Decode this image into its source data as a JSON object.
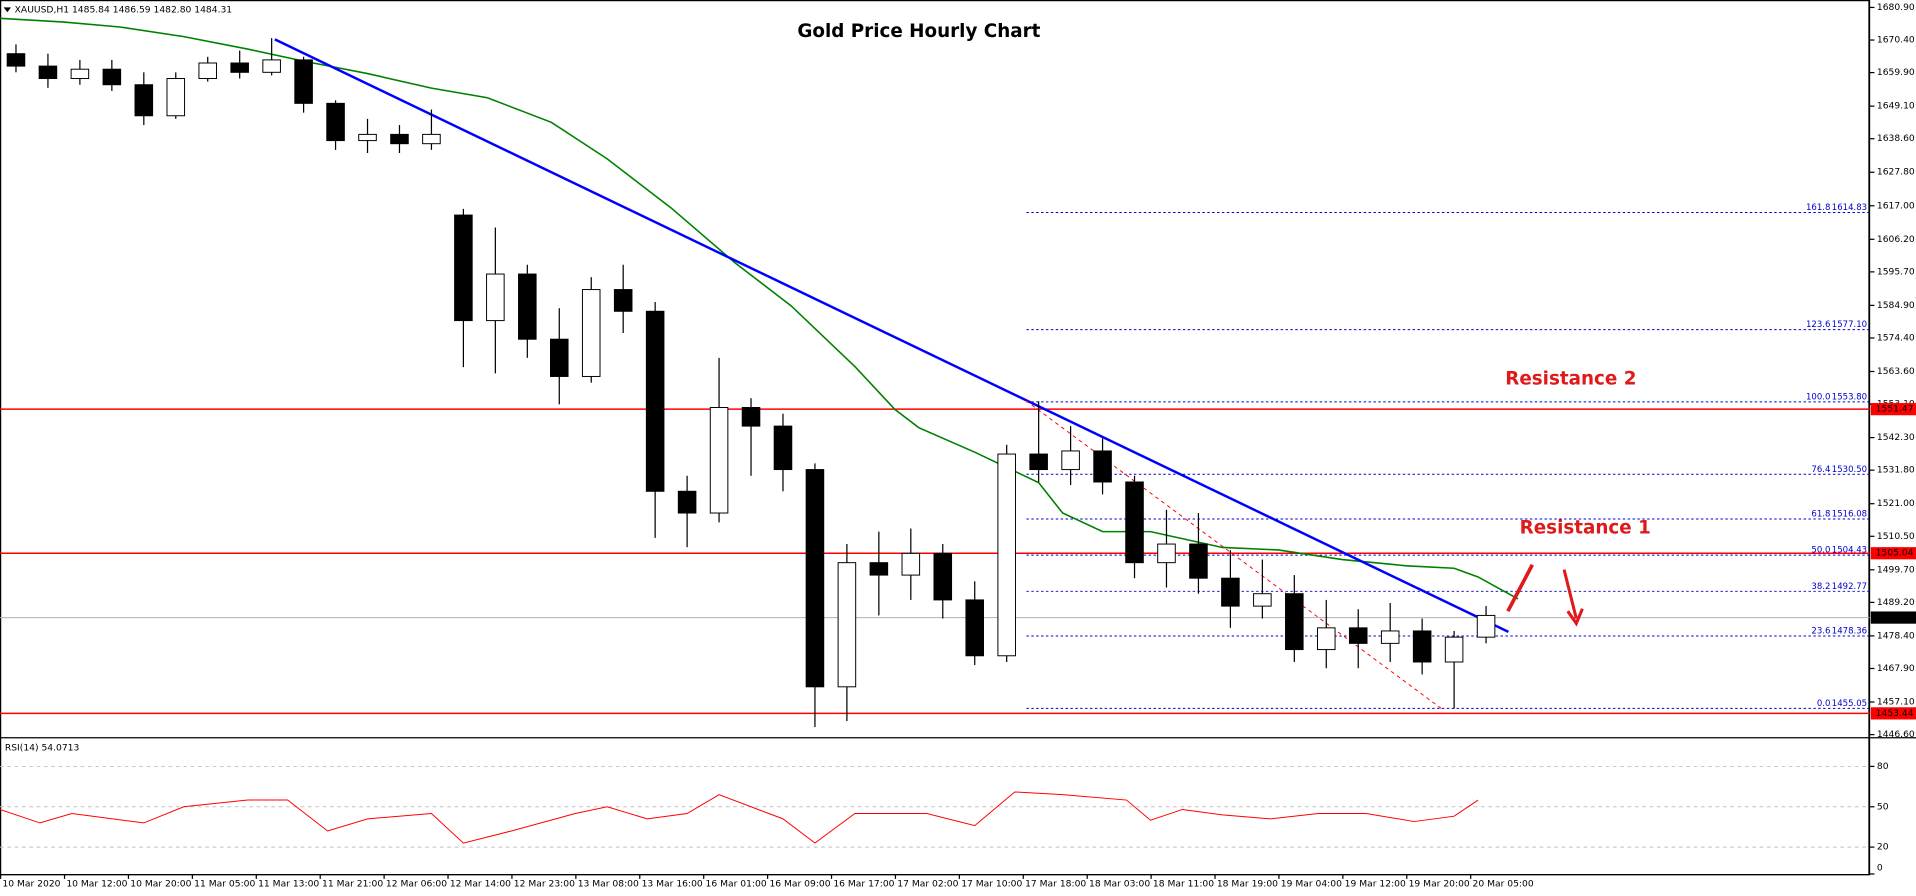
{
  "chart_data": [
    {
      "type": "candlestick",
      "title": "Gold Price Hourly Chart",
      "header": "XAUUSD,H1  1485.84 1486.59 1482.80 1484.31",
      "xlim": [
        0,
        234
      ],
      "ylim": [
        1445.8,
        1683.3
      ],
      "yticks": [
        {
          "value": 1680.9,
          "label": "1680.90"
        },
        {
          "value": 1670.4,
          "label": "1670.40"
        },
        {
          "value": 1659.9,
          "label": "1659.90"
        },
        {
          "value": 1649.1,
          "label": "1649.10"
        },
        {
          "value": 1638.6,
          "label": "1638.60"
        },
        {
          "value": 1627.8,
          "label": "1627.80"
        },
        {
          "value": 1617,
          "label": "1617.00"
        },
        {
          "value": 1606.2,
          "label": "1606.20"
        },
        {
          "value": 1595.7,
          "label": "1595.70"
        },
        {
          "value": 1584.9,
          "label": "1584.90"
        },
        {
          "value": 1574.4,
          "label": "1574.40"
        },
        {
          "value": 1563.6,
          "label": "1563.60"
        },
        {
          "value": 1553.1,
          "label": "1553.10"
        },
        {
          "value": 1542.3,
          "label": "1542.30"
        },
        {
          "value": 1531.8,
          "label": "1531.80"
        },
        {
          "value": 1521,
          "label": "1521.00"
        },
        {
          "value": 1510.5,
          "label": "1510.50"
        },
        {
          "value": 1499.7,
          "label": "1499.70"
        },
        {
          "value": 1489.2,
          "label": "1489.20"
        },
        {
          "value": 1478.4,
          "label": "1478.40"
        },
        {
          "value": 1467.9,
          "label": "1467.90"
        },
        {
          "value": 1457.1,
          "label": "1457.10"
        },
        {
          "value": 1446.6,
          "label": "1446.60"
        }
      ],
      "x": [
        2,
        6,
        10,
        14,
        18,
        22,
        26,
        30,
        34,
        38,
        42,
        46,
        50,
        54,
        58,
        62,
        66,
        70,
        74,
        78,
        82,
        86,
        90,
        94,
        98,
        102,
        106,
        110,
        114,
        118,
        122,
        126,
        130,
        134,
        138,
        142,
        146,
        150,
        154,
        158,
        162,
        166,
        170,
        174,
        178,
        182,
        186
      ],
      "open": [
        1666,
        1662,
        1658,
        1661,
        1656,
        1646,
        1658,
        1663,
        1660,
        1664,
        1650,
        1638,
        1640,
        1637,
        1614,
        1580,
        1595,
        1574,
        1562,
        1590,
        1583,
        1525,
        1518,
        1552,
        1546,
        1532,
        1462,
        1502,
        1498,
        1505,
        1490,
        1472,
        1537,
        1532,
        1538,
        1528,
        1502,
        1508,
        1497,
        1488,
        1492,
        1474,
        1481,
        1476,
        1480,
        1470,
        1478
      ],
      "high": [
        1669,
        1666,
        1664,
        1664,
        1660,
        1660,
        1665,
        1667,
        1671,
        1665,
        1651,
        1645,
        1643,
        1648,
        1616,
        1610,
        1598,
        1584,
        1594,
        1598,
        1586,
        1530,
        1568,
        1555,
        1550,
        1534,
        1508,
        1512,
        1513,
        1508,
        1496,
        1540,
        1554,
        1546,
        1542,
        1530,
        1519,
        1518,
        1506,
        1503,
        1498,
        1490,
        1487,
        1489,
        1484,
        1480,
        1488
      ],
      "low": [
        1660,
        1655,
        1656,
        1654,
        1643,
        1645,
        1657,
        1658,
        1659,
        1647,
        1635,
        1634,
        1634,
        1635,
        1565,
        1563,
        1568,
        1553,
        1560,
        1576,
        1510,
        1507,
        1515,
        1530,
        1525,
        1449,
        1451,
        1485,
        1490,
        1484,
        1469,
        1470,
        1528,
        1527,
        1524,
        1497,
        1494,
        1492,
        1481,
        1484,
        1470,
        1468,
        1468,
        1470,
        1466,
        1455,
        1476
      ],
      "close": [
        1662,
        1658,
        1661,
        1656,
        1646,
        1658,
        1663,
        1660,
        1664,
        1650,
        1638,
        1640,
        1637,
        1640,
        1580,
        1595,
        1574,
        1562,
        1590,
        1583,
        1525,
        1518,
        1552,
        1546,
        1532,
        1462,
        1502,
        1498,
        1505,
        1490,
        1472,
        1537,
        1532,
        1538,
        1528,
        1502,
        1508,
        1497,
        1488,
        1492,
        1474,
        1481,
        1476,
        1480,
        1470,
        1478,
        1485
      ],
      "moving_average": {
        "color": "#008000",
        "x": [
          0,
          8,
          15,
          23,
          31,
          38,
          46,
          54,
          61,
          69,
          76,
          84,
          92,
          99,
          107,
          112,
          115,
          122,
          130,
          133,
          138,
          144,
          153,
          160,
          168,
          176,
          182,
          185,
          190
        ],
        "values": [
          1677.4,
          1676.2,
          1674.6,
          1671.5,
          1667.5,
          1663.6,
          1659.6,
          1654.9,
          1651.8,
          1643.9,
          1632.1,
          1616.3,
          1598.6,
          1584.8,
          1565.2,
          1551.4,
          1545.5,
          1537.6,
          1527.8,
          1518,
          1512,
          1512,
          1506.9,
          1506.1,
          1503,
          1501,
          1500.2,
          1497.4,
          1490.3
        ]
      },
      "trendlines": [
        {
          "color": "#0000ff",
          "x": [
            34.4,
            188.8
          ],
          "values": [
            1670.6,
            1479.7
          ]
        },
        {
          "color": "#ff0000",
          "x": [
            128.4,
            180.4
          ],
          "values": [
            1554.2,
            1455
          ]
        }
      ],
      "levels": [
        {
          "value": 1551.47,
          "label": "1551.47"
        },
        {
          "value": 1505.04,
          "label": "1505.04"
        },
        {
          "value": 1453.44,
          "label": "1453.44"
        }
      ],
      "level_color": "#ff0000",
      "current_price": {
        "value": 1484.31,
        "label": "1484.31"
      },
      "fibonacci": [
        {
          "ratio": "161.8",
          "value": 1614.83,
          "label": "1614.83"
        },
        {
          "ratio": "123.6",
          "value": 1577.1,
          "label": "1577.10"
        },
        {
          "ratio": "100.0",
          "value": 1553.8,
          "label": "1553.80"
        },
        {
          "ratio": "76.4",
          "value": 1530.5,
          "label": "1530.50"
        },
        {
          "ratio": "61.8",
          "value": 1516.08,
          "label": "1516.08"
        },
        {
          "ratio": "50.0",
          "value": 1504.43,
          "label": "1504.43"
        },
        {
          "ratio": "38.2",
          "value": 1492.77,
          "label": "1492.77"
        },
        {
          "ratio": "23.6",
          "value": 1478.36,
          "label": "1478.36"
        },
        {
          "ratio": "0.0",
          "value": 1455.05,
          "label": "1455.05"
        }
      ],
      "fib_color": "#0000cd",
      "annotations": [
        {
          "text": "Resistance 2",
          "x": 188.4,
          "y": 1561
        },
        {
          "text": "Resistance 1",
          "x": 190.2,
          "y": 1513
        }
      ]
    },
    {
      "type": "line",
      "title": "RSI(14) 54.0713",
      "xlim": [
        0,
        234
      ],
      "ylim": [
        0,
        100
      ],
      "yticks": [
        80,
        50,
        20,
        0
      ],
      "grid": [
        80,
        50,
        20
      ],
      "color": "#ff0000",
      "x": [
        0,
        5,
        9,
        18,
        23,
        31,
        36,
        41,
        46,
        54,
        58,
        64,
        72,
        76,
        81,
        86,
        90,
        98,
        102,
        107,
        116,
        122,
        127,
        133,
        141,
        144,
        148,
        153,
        159,
        165,
        171,
        177,
        182,
        185
      ],
      "values": [
        48,
        38,
        45,
        38,
        50,
        55,
        55,
        32,
        41,
        45,
        23,
        32,
        45,
        50,
        41,
        45,
        59,
        41,
        23,
        45,
        45,
        36,
        61,
        59,
        55,
        40,
        48,
        44,
        41,
        45,
        45,
        39,
        43,
        55
      ],
      "xticks": [
        {
          "value": 0,
          "label": "10 Mar 2020"
        },
        {
          "value": 8,
          "label": "10 Mar 12:00"
        },
        {
          "value": 16,
          "label": "10 Mar 20:00"
        },
        {
          "value": 24,
          "label": "11 Mar 05:00"
        },
        {
          "value": 32,
          "label": "11 Mar 13:00"
        },
        {
          "value": 40,
          "label": "11 Mar 21:00"
        },
        {
          "value": 48,
          "label": "12 Mar 06:00"
        },
        {
          "value": 56,
          "label": "12 Mar 14:00"
        },
        {
          "value": 64,
          "label": "12 Mar 23:00"
        },
        {
          "value": 72,
          "label": "13 Mar 08:00"
        },
        {
          "value": 80,
          "label": "13 Mar 16:00"
        },
        {
          "value": 88,
          "label": "16 Mar 01:00"
        },
        {
          "value": 96,
          "label": "16 Mar 09:00"
        },
        {
          "value": 104,
          "label": "16 Mar 17:00"
        },
        {
          "value": 112,
          "label": "17 Mar 02:00"
        },
        {
          "value": 120,
          "label": "17 Mar 10:00"
        },
        {
          "value": 128,
          "label": "17 Mar 18:00"
        },
        {
          "value": 136,
          "label": "18 Mar 03:00"
        },
        {
          "value": 144,
          "label": "18 Mar 11:00"
        },
        {
          "value": 152,
          "label": "18 Mar 19:00"
        },
        {
          "value": 160,
          "label": "19 Mar 04:00"
        },
        {
          "value": 168,
          "label": "19 Mar 12:00"
        },
        {
          "value": 176,
          "label": "19 Mar 20:00"
        },
        {
          "value": 184,
          "label": "20 Mar 05:00"
        }
      ]
    }
  ]
}
